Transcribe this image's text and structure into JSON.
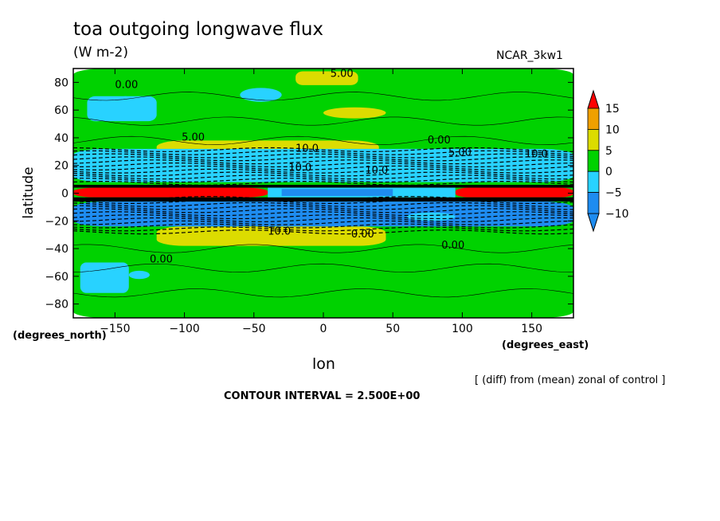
{
  "header": {
    "title": "toa outgoing longwave flux",
    "units": "(W m-2)",
    "model": "NCAR_3kw1"
  },
  "footer": {
    "contour_interval": "CONTOUR INTERVAL = 2.500E+00",
    "note": "[ (diff) from (mean) zonal of control ]"
  },
  "axes": {
    "y_label": "latitude",
    "x_label": "lon",
    "y_units": "(degrees_north)",
    "x_units": "(degrees_east)"
  },
  "chart_data": {
    "type": "heatmap",
    "title": "toa outgoing longwave flux",
    "subtitle": "(W m-2)",
    "xlabel": "lon",
    "ylabel": "latitude",
    "xlim": [
      -180,
      180
    ],
    "ylim": [
      -90,
      90
    ],
    "x_ticks": [
      -150,
      -100,
      -50,
      0,
      50,
      100,
      150
    ],
    "y_ticks": [
      -80,
      -60,
      -40,
      -20,
      0,
      20,
      40,
      60,
      80
    ],
    "x_tick_labels": [
      "-150",
      "-100",
      "-50",
      "0",
      "50",
      "100",
      "150"
    ],
    "y_tick_labels": [
      "-80",
      "-60",
      "-40",
      "-20",
      "0",
      "20",
      "40",
      "60",
      "80"
    ],
    "colorbar": {
      "labels": [
        "15",
        "10",
        "5",
        "0",
        "-5",
        "-10"
      ],
      "levels": [
        -15,
        -10,
        -5,
        0,
        5,
        10,
        15
      ],
      "colors": [
        "#1e8cf0",
        "#28d2ff",
        "#00d200",
        "#dcdc00",
        "#f0a000",
        "#ff0000"
      ]
    },
    "contour_labels": [
      "0.00",
      "5.00",
      "5.00",
      "10.0",
      "0.00",
      "5.00",
      "10.0",
      "10.0",
      "0.00",
      "0.00",
      "0.00",
      "10.0",
      "10.0"
    ],
    "contour_interval": 2.5,
    "regions": [
      {
        "level": "0 to 5",
        "lon": [
          -180,
          180
        ],
        "lat": [
          -90,
          90
        ]
      },
      {
        "level": "5 to 10",
        "lon": [
          -120,
          40
        ],
        "lat": [
          24,
          38
        ]
      },
      {
        "level": "5 to 10",
        "lon": [
          -120,
          45
        ],
        "lat": [
          -38,
          -24
        ]
      },
      {
        "level": "-5 to 0",
        "lon": [
          -180,
          180
        ],
        "lat": [
          8,
          32
        ]
      },
      {
        "level": "-10 to -5",
        "lon": [
          -180,
          180
        ],
        "lat": [
          -24,
          -6
        ]
      },
      {
        "level": "10 to 15",
        "lon": [
          -180,
          -40
        ],
        "lat": [
          -3,
          4
        ]
      },
      {
        "level": "10 to 15",
        "lon": [
          95,
          180
        ],
        "lat": [
          -3,
          4
        ]
      },
      {
        "level": "5 to 10",
        "lon": [
          -20,
          25
        ],
        "lat": [
          78,
          88
        ]
      },
      {
        "level": "-5 to 0",
        "lon": [
          -170,
          -120
        ],
        "lat": [
          52,
          70
        ]
      },
      {
        "level": "-5 to 0",
        "lon": [
          -175,
          -140
        ],
        "lat": [
          -72,
          -50
        ]
      }
    ]
  }
}
